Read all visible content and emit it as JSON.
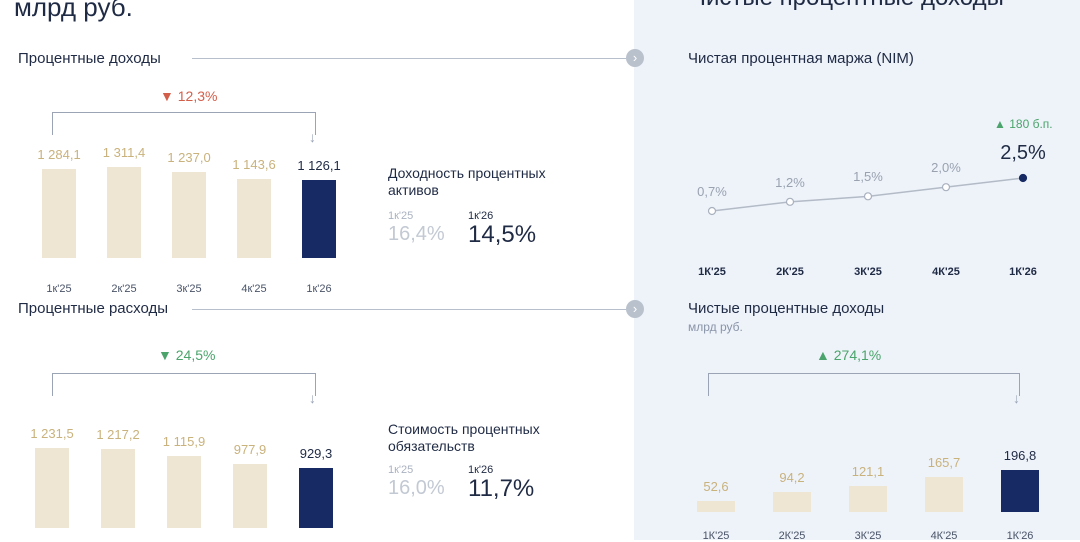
{
  "header": {
    "left_unit": "млрд руб.",
    "right_title": "Чистые процентные доходы"
  },
  "icons": {
    "arrow": "chevron-right-icon"
  },
  "colors": {
    "past": "#eee5d3",
    "current": "#172a63",
    "down": "#d35f4b",
    "up": "#4aa46b"
  },
  "chart_data": [
    {
      "type": "bar",
      "title": "Процентные доходы",
      "categories": [
        "1к'25",
        "2к'25",
        "3к'25",
        "4к'25",
        "1к'26"
      ],
      "value_labels": [
        "1 284,1",
        "1 311,4",
        "1 237,0",
        "1 143,6",
        "1 126,1"
      ],
      "values": [
        1284.1,
        1311.4,
        1237.0,
        1143.6,
        1126.1
      ],
      "change": "12,3%",
      "change_direction": "down",
      "side": {
        "title": "Доходность процентных активов",
        "prev_label": "1к'25",
        "prev_value": "16,4%",
        "cur_label": "1к'26",
        "cur_value": "14,5%"
      }
    },
    {
      "type": "bar",
      "title": "Процентные расходы",
      "categories": [
        "1к'25",
        "2к'25",
        "3к'25",
        "4к'25",
        "1к'26"
      ],
      "value_labels": [
        "1 231,5",
        "1 217,2",
        "1 115,9",
        "977,9",
        "929,3"
      ],
      "values": [
        1231.5,
        1217.2,
        1115.9,
        977.9,
        929.3
      ],
      "change": "24,5%",
      "change_direction": "down",
      "side": {
        "title": "Стоимость процентных обязательств",
        "prev_label": "1к'25",
        "prev_value": "16,0%",
        "cur_label": "1к'26",
        "cur_value": "11,7%"
      }
    },
    {
      "type": "line",
      "title": "Чистая процентная маржа (NIM)",
      "categories": [
        "1К'25",
        "2К'25",
        "3К'25",
        "4К'25",
        "1К'26"
      ],
      "value_labels": [
        "0,7%",
        "1,2%",
        "1,5%",
        "2,0%",
        "2,5%"
      ],
      "values": [
        0.7,
        1.2,
        1.5,
        2.0,
        2.5
      ],
      "change": "180 б.п.",
      "change_direction": "up"
    },
    {
      "type": "bar",
      "title": "Чистые процентные доходы",
      "subtitle": "млрд руб.",
      "categories": [
        "1К'25",
        "2К'25",
        "3К'25",
        "4К'25",
        "1К'26"
      ],
      "value_labels": [
        "52,6",
        "94,2",
        "121,1",
        "165,7",
        "196,8"
      ],
      "values": [
        52.6,
        94.2,
        121.1,
        165.7,
        196.8
      ],
      "change": "274,1%",
      "change_direction": "up"
    }
  ]
}
